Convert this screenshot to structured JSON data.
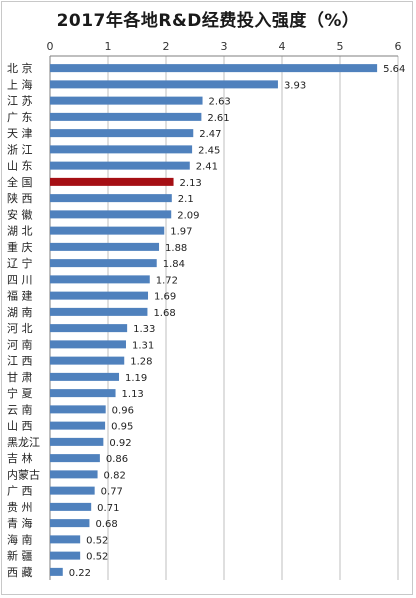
{
  "chart_data": {
    "type": "bar",
    "orientation": "horizontal",
    "title": "2017年各地R&D经费投入强度（%）",
    "xlim": [
      0,
      6
    ],
    "xticks": [
      "0",
      "1",
      "2",
      "3",
      "4",
      "5",
      "6"
    ],
    "grid": true,
    "legend": "none",
    "categories": [
      "北  京",
      "上  海",
      "江  苏",
      "广  东",
      "天  津",
      "浙  江",
      "山  东",
      "全  国",
      "陕  西",
      "安  徽",
      "湖  北",
      "重  庆",
      "辽  宁",
      "四  川",
      "福  建",
      "湖  南",
      "河  北",
      "河  南",
      "江  西",
      "甘  肃",
      "宁  夏",
      "云  南",
      "山  西",
      "黑龙江",
      "吉  林",
      "内蒙古",
      "广  西",
      "贵  州",
      "青  海",
      "海  南",
      "新  疆",
      "西  藏"
    ],
    "values": [
      5.64,
      3.93,
      2.63,
      2.61,
      2.47,
      2.45,
      2.41,
      2.13,
      2.1,
      2.09,
      1.97,
      1.88,
      1.84,
      1.72,
      1.69,
      1.68,
      1.33,
      1.31,
      1.28,
      1.19,
      1.13,
      0.96,
      0.95,
      0.92,
      0.86,
      0.82,
      0.77,
      0.71,
      0.68,
      0.52,
      0.52,
      0.22
    ],
    "value_labels": [
      "5.64",
      "3.93",
      "2.63",
      "2.61",
      "2.47",
      "2.45",
      "2.41",
      "2.13",
      "2.1",
      "2.09",
      "1.97",
      "1.88",
      "1.84",
      "1.72",
      "1.69",
      "1.68",
      "1.33",
      "1.31",
      "1.28",
      "1.19",
      "1.13",
      "0.96",
      "0.95",
      "0.92",
      "0.86",
      "0.82",
      "0.77",
      "0.71",
      "0.68",
      "0.52",
      "0.52",
      "0.22"
    ],
    "highlight_category": "全  国",
    "colors": {
      "bar": "#4f81bd",
      "highlight": "#a50f14",
      "grid": "#bfbfbf",
      "axis": "#7f7f7f"
    }
  }
}
